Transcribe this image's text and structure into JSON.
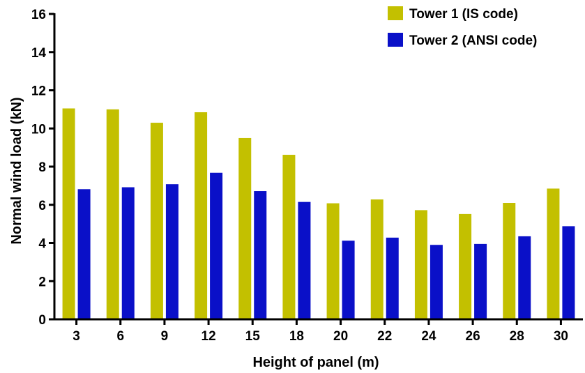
{
  "chart_data": {
    "type": "bar",
    "title": "",
    "xlabel": "Height of panel (m)",
    "ylabel": "Normal wind load (kN)",
    "categories": [
      "3",
      "6",
      "9",
      "12",
      "15",
      "18",
      "20",
      "22",
      "24",
      "26",
      "28",
      "30"
    ],
    "series": [
      {
        "name": "Tower 1 (IS code)",
        "color": "#c3c000",
        "values": [
          11.05,
          11.0,
          10.3,
          10.85,
          9.5,
          8.62,
          6.08,
          6.28,
          5.72,
          5.52,
          6.1,
          6.85
        ]
      },
      {
        "name": "Tower 2 (ANSI code)",
        "color": "#0a10c8",
        "values": [
          6.82,
          6.92,
          7.08,
          7.68,
          6.72,
          6.15,
          4.12,
          4.28,
          3.9,
          3.95,
          4.35,
          4.88
        ]
      }
    ],
    "ylim": [
      0,
      16
    ],
    "yticks": [
      0,
      2,
      4,
      6,
      8,
      10,
      12,
      14,
      16
    ],
    "grid": false,
    "legend_position": "top-right"
  }
}
